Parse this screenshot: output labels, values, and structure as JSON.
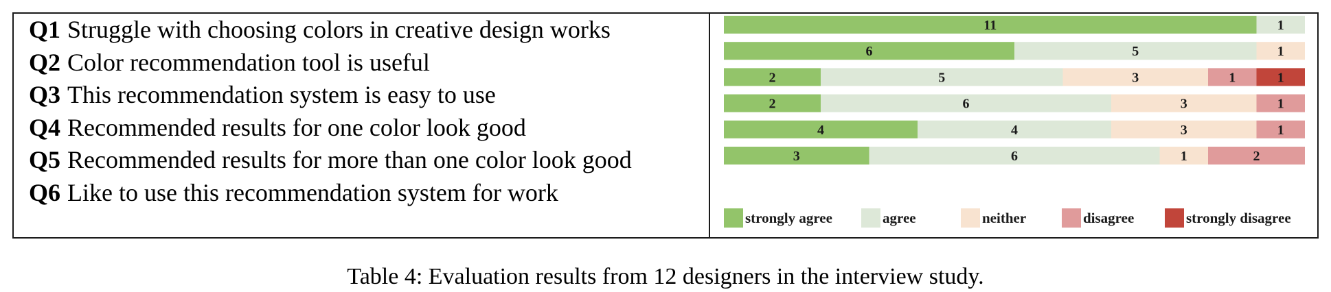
{
  "questions": [
    {
      "id": "Q1",
      "text": "Struggle with choosing colors in creative design works"
    },
    {
      "id": "Q2",
      "text": "Color recommendation tool is useful"
    },
    {
      "id": "Q3",
      "text": "This recommendation system is easy to use"
    },
    {
      "id": "Q4",
      "text": "Recommended results for one color look good"
    },
    {
      "id": "Q5",
      "text": "Recommended results for more than one color look good"
    },
    {
      "id": "Q6",
      "text": "Like to use this recommendation system for work"
    }
  ],
  "caption": "Table 4: Evaluation results from 12 designers in the interview study.",
  "chart_data": {
    "type": "bar",
    "orientation": "horizontal",
    "stacked": true,
    "categories": [
      "Q1",
      "Q2",
      "Q3",
      "Q4",
      "Q5",
      "Q6"
    ],
    "series": [
      {
        "name": "strongly agree",
        "color": "#93c46a",
        "values": [
          11,
          6,
          2,
          2,
          4,
          3
        ]
      },
      {
        "name": "agree",
        "color": "#dde8d8",
        "values": [
          1,
          5,
          5,
          6,
          4,
          6
        ]
      },
      {
        "name": "neither",
        "color": "#f8e3d0",
        "values": [
          0,
          1,
          3,
          3,
          3,
          1
        ]
      },
      {
        "name": "disagree",
        "color": "#e09b9b",
        "values": [
          0,
          0,
          1,
          1,
          1,
          2
        ]
      },
      {
        "name": "strongly disagree",
        "color": "#c1453a",
        "values": [
          0,
          0,
          1,
          0,
          0,
          0
        ]
      }
    ],
    "total_per_question": 12,
    "legend_position": "bottom",
    "grid": false,
    "data_labels": true
  }
}
